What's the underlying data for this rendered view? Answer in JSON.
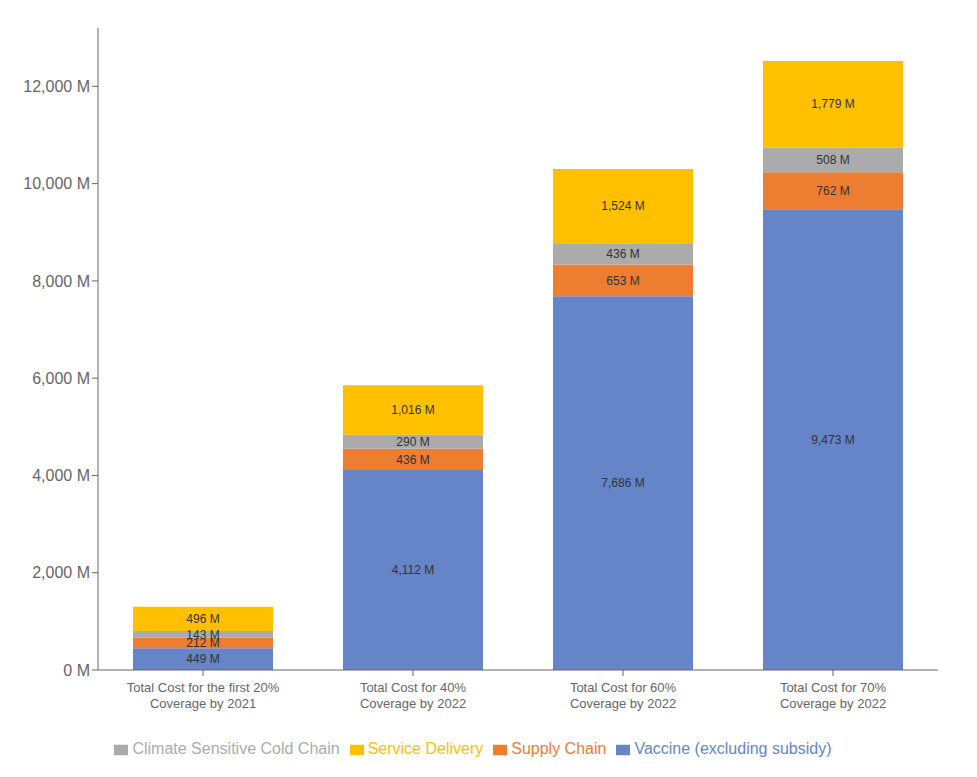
{
  "chart_data": {
    "type": "bar",
    "stacked": true,
    "data_labels": true,
    "grid": false,
    "legend": "bottom",
    "categories": [
      "Total Cost for the first 20%\nCoverage by 2021",
      "Total Cost for 40%\nCoverage by 2022",
      "Total Cost for 60%\nCoverage by 2022",
      "Total Cost for 70%\nCoverage by 2022"
    ],
    "series": [
      {
        "name": "Vaccine (excluding subsidy)",
        "color": "#6585C8",
        "values": [
          449,
          4112,
          7686,
          9473
        ],
        "value_labels": [
          "449 M",
          "4,112 M",
          "7,686 M",
          "9,473 M"
        ]
      },
      {
        "name": "Supply Chain",
        "color": "#ED7D31",
        "values": [
          212,
          436,
          653,
          762
        ],
        "value_labels": [
          "212 M",
          "436 M",
          "653 M",
          "762 M"
        ]
      },
      {
        "name": "Climate Sensitive Cold Chain",
        "color": "#ABABAB",
        "values": [
          143,
          290,
          436,
          508
        ],
        "value_labels": [
          "143 M",
          "290 M",
          "436 M",
          "508 M"
        ]
      },
      {
        "name": "Service Delivery",
        "color": "#FFC000",
        "values": [
          496,
          1016,
          1524,
          1779
        ],
        "value_labels": [
          "496 M",
          "1,016 M",
          "1,524 M",
          "1,779 M"
        ]
      }
    ],
    "ylim": [
      0,
      13200
    ],
    "yticks": [
      {
        "value": 0,
        "label": "0 M"
      },
      {
        "value": 2000,
        "label": "2,000 M"
      },
      {
        "value": 4000,
        "label": "4,000 M"
      },
      {
        "value": 6000,
        "label": "6,000 M"
      },
      {
        "value": 8000,
        "label": "8,000 M"
      },
      {
        "value": 10000,
        "label": "10,000 M"
      },
      {
        "value": 12000,
        "label": "12,000 M"
      }
    ]
  }
}
